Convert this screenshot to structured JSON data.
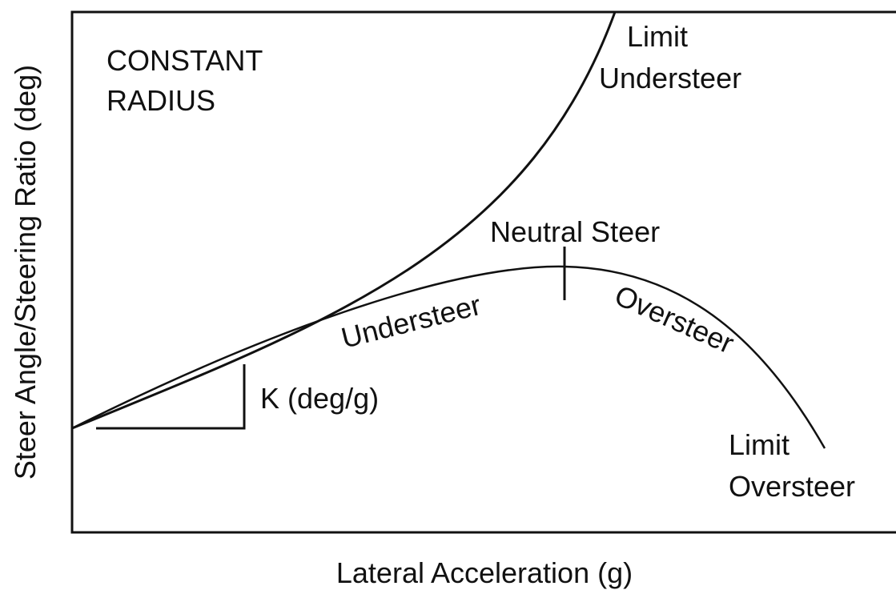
{
  "axes": {
    "x_label": "Lateral Acceleration (g)",
    "y_label": "Steer Angle/Steering Ratio (deg)"
  },
  "labels": {
    "condition": [
      "CONSTANT",
      "RADIUS"
    ],
    "limit_understeer": [
      "Limit",
      "Understeer"
    ],
    "neutral_steer": "Neutral Steer",
    "understeer": "Understeer",
    "oversteer": "Oversteer",
    "slope": "K (deg/g)",
    "limit_oversteer": [
      "Limit",
      "Oversteer"
    ]
  }
}
